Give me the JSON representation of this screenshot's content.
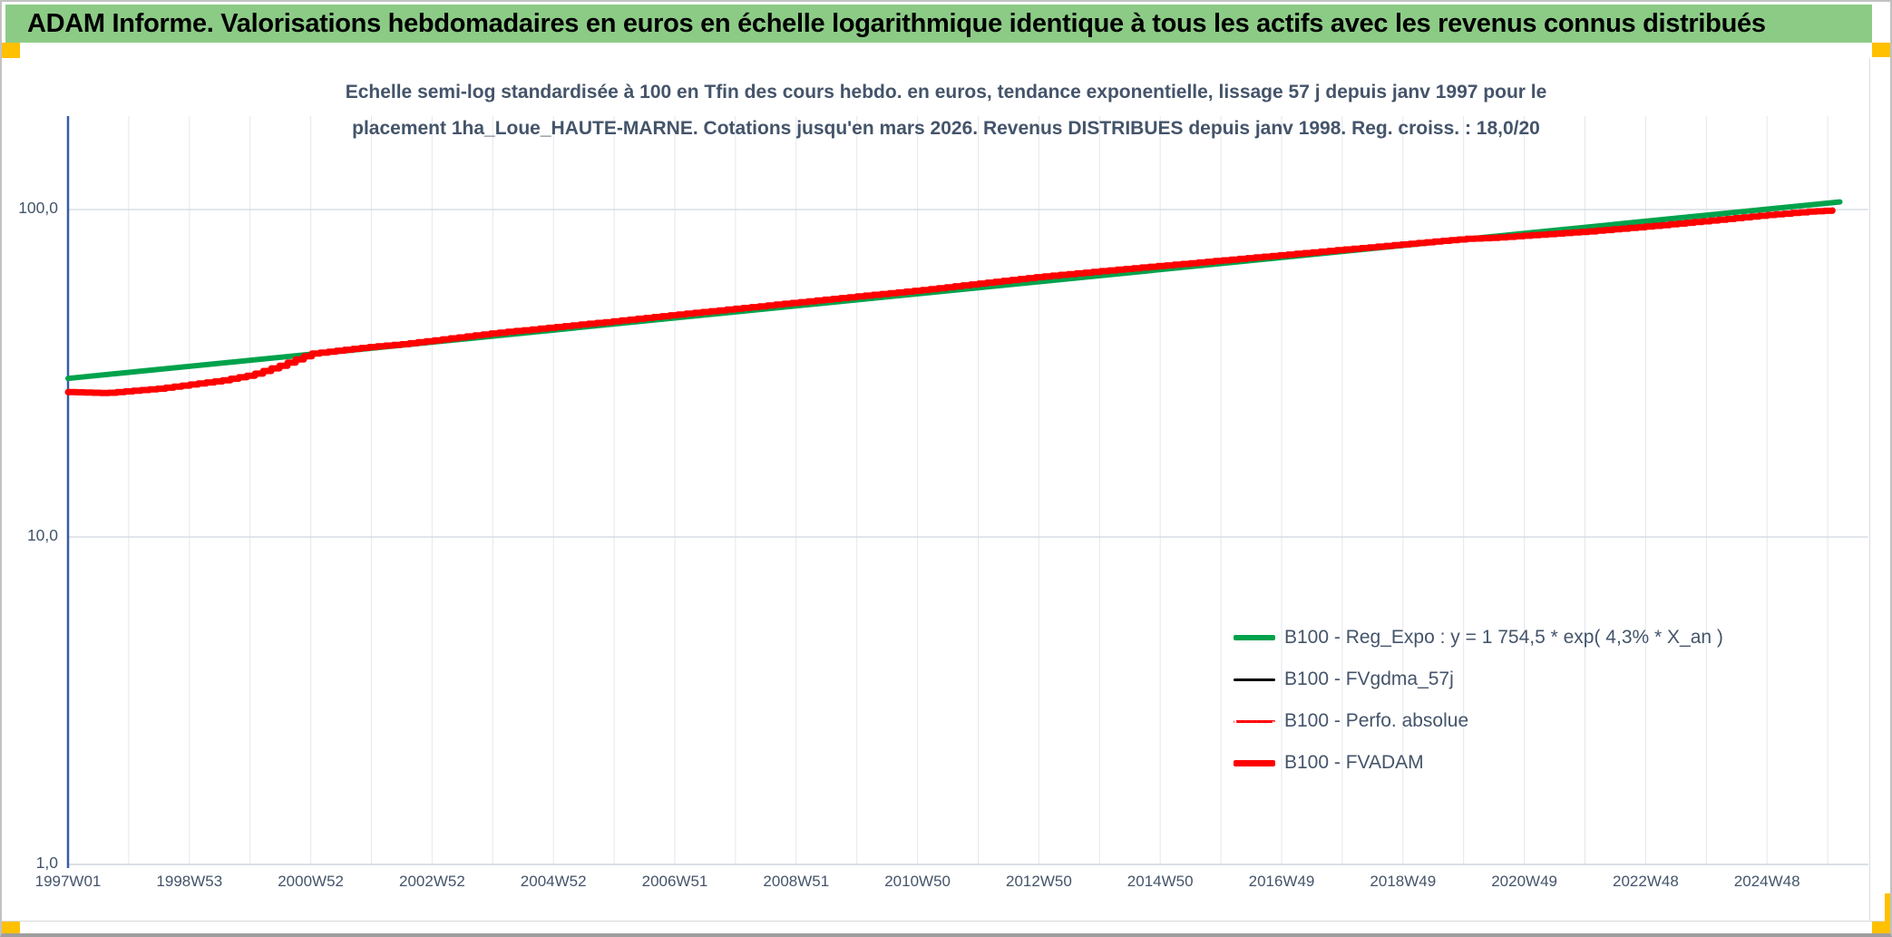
{
  "window": {
    "title": "ADAM Informe. Valorisations hebdomadaires en euros en échelle logarithmique identique à tous les actifs avec les revenus connus distribués"
  },
  "colors": {
    "header_bg": "#8ccb86",
    "accent": "#ffc000",
    "title_text": "#44546a",
    "axis_line": "#355ea2",
    "grid_minor": "#e3e7ee",
    "grid_major": "#d8dde5",
    "axis_bottom": "#cfd5dd"
  },
  "chart_data": {
    "type": "line",
    "y_log_scale": true,
    "ylim": [
      1,
      190
    ],
    "x_years_range": [
      1997.0,
      2026.5
    ],
    "grid": "vertical yearly, horizontal at decades",
    "legend_position": "bottom-right",
    "title_lines": [
      "Echelle semi-log standardisée à 100 en Tfin des cours hebdo. en euros, tendance exponentielle, lissage 57 j depuis janv 1997 pour le",
      "placement 1ha_Loue_HAUTE-MARNE. Cotations jusqu'en mars 2026. Revenus DISTRIBUES depuis janv 1998. Reg. croiss. : 18,0/20"
    ],
    "y_ticks": [
      "100,0",
      "10,0",
      "1,0"
    ],
    "x_ticks": [
      "1997W01",
      "1998W53",
      "2000W52",
      "2002W52",
      "2004W52",
      "2006W51",
      "2008W51",
      "2010W50",
      "2012W50",
      "2014W50",
      "2016W49",
      "2018W49",
      "2020W49",
      "2022W48",
      "2024W48"
    ],
    "series": [
      {
        "name": "B100 - Reg_Expo : y = 1 754,5 * exp( 4,3% *  X_an )",
        "color": "#00a24c",
        "width": 6,
        "style": "solid",
        "render": "line",
        "x": [
          1997.0,
          2026.2
        ],
        "y": [
          30.5,
          105.5
        ]
      },
      {
        "name": "B100 - FVgdma_57j",
        "color": "#000000",
        "width": 3,
        "style": "solid",
        "render": "step",
        "x": [
          1997.0,
          1997.6,
          1998.0,
          1998.5,
          1999.0,
          1999.5,
          2000.0,
          2000.5,
          2001.0,
          2001.5,
          2002.0,
          2002.5,
          2003.0,
          2004.0,
          2005.0,
          2006.0,
          2007.0,
          2008.0,
          2009.0,
          2010.0,
          2011.0,
          2012.0,
          2013.0,
          2014.0,
          2015.0,
          2016.0,
          2017.0,
          2018.0,
          2019.0,
          2020.0,
          2020.5,
          2021.0,
          2022.0,
          2023.0,
          2024.0,
          2025.0,
          2025.7,
          2026.2
        ],
        "y": [
          27.7,
          27.5,
          27.9,
          28.4,
          29.2,
          30.0,
          31.2,
          33.4,
          36.3,
          37.2,
          38.1,
          38.8,
          39.8,
          41.9,
          43.7,
          45.6,
          47.7,
          49.8,
          52.0,
          54.3,
          56.6,
          59.4,
          62.3,
          64.8,
          67.3,
          69.9,
          72.6,
          75.4,
          78.3,
          81.3,
          82.0,
          83.2,
          85.6,
          88.7,
          92.3,
          96.2,
          98.6,
          99.6
        ]
      },
      {
        "name": "B100 - Perfo. absolue",
        "color": "#ff0000",
        "width": 2,
        "style": "dotted",
        "render": "step",
        "x": [
          1997.0,
          1997.6,
          1998.0,
          1998.5,
          1999.0,
          1999.5,
          2000.0,
          2000.5,
          2001.0,
          2001.5,
          2002.0,
          2002.5,
          2003.0,
          2004.0,
          2005.0,
          2006.0,
          2007.0,
          2008.0,
          2009.0,
          2010.0,
          2011.0,
          2012.0,
          2013.0,
          2014.0,
          2015.0,
          2016.0,
          2017.0,
          2018.0,
          2019.0,
          2020.0,
          2020.5,
          2021.0,
          2022.0,
          2023.0,
          2024.0,
          2025.0,
          2025.7,
          2026.2
        ],
        "y": [
          27.7,
          27.5,
          27.9,
          28.4,
          29.2,
          30.0,
          31.2,
          33.4,
          36.3,
          37.2,
          38.1,
          38.8,
          39.8,
          41.9,
          43.7,
          45.6,
          47.7,
          49.8,
          52.0,
          54.3,
          56.6,
          59.4,
          62.3,
          64.8,
          67.3,
          69.9,
          72.6,
          75.4,
          78.3,
          81.3,
          82.0,
          83.2,
          85.6,
          88.7,
          92.3,
          96.2,
          98.6,
          99.6
        ]
      },
      {
        "name": "B100 - FVADAM",
        "color": "#ff0000",
        "width": 7,
        "style": "solid",
        "render": "step",
        "x": [
          1997.0,
          1997.6,
          1998.0,
          1998.5,
          1999.0,
          1999.5,
          2000.0,
          2000.5,
          2001.0,
          2001.5,
          2002.0,
          2002.5,
          2003.0,
          2004.0,
          2005.0,
          2006.0,
          2007.0,
          2008.0,
          2009.0,
          2010.0,
          2011.0,
          2012.0,
          2013.0,
          2014.0,
          2015.0,
          2016.0,
          2017.0,
          2018.0,
          2019.0,
          2020.0,
          2020.5,
          2021.0,
          2022.0,
          2023.0,
          2024.0,
          2025.0,
          2025.7,
          2026.2
        ],
        "y": [
          27.7,
          27.5,
          27.9,
          28.4,
          29.2,
          30.0,
          31.2,
          33.4,
          36.3,
          37.2,
          38.1,
          38.8,
          39.8,
          41.9,
          43.7,
          45.6,
          47.7,
          49.8,
          52.0,
          54.3,
          56.6,
          59.4,
          62.3,
          64.8,
          67.3,
          69.9,
          72.6,
          75.4,
          78.3,
          81.3,
          82.0,
          83.2,
          85.6,
          88.7,
          92.3,
          96.2,
          98.6,
          99.6
        ]
      }
    ]
  }
}
